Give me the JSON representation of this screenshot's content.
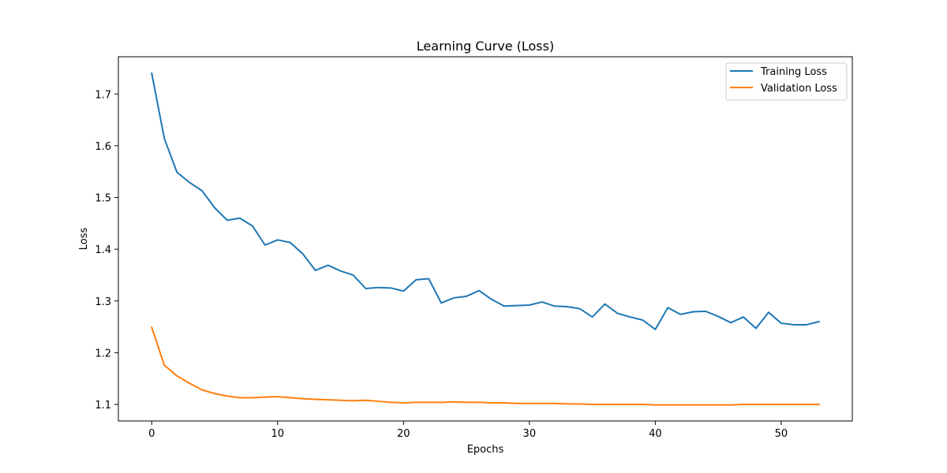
{
  "chart_data": {
    "type": "line",
    "title": "Learning Curve (Loss)",
    "xlabel": "Epochs",
    "ylabel": "Loss",
    "xlim": [
      -2.65,
      55.65
    ],
    "ylim": [
      1.068,
      1.772
    ],
    "xticks": [
      0,
      10,
      20,
      30,
      40,
      50
    ],
    "yticks": [
      1.1,
      1.2,
      1.3,
      1.4,
      1.5,
      1.6,
      1.7
    ],
    "yticks_labels": [
      "1.1",
      "1.2",
      "1.3",
      "1.4",
      "1.5",
      "1.6",
      "1.7"
    ],
    "grid": false,
    "legend_position": "top-right",
    "series": [
      {
        "name": "Training Loss",
        "color": "#1f77b4",
        "x": [
          0,
          1,
          2,
          3,
          4,
          5,
          6,
          7,
          8,
          9,
          10,
          11,
          12,
          13,
          14,
          15,
          16,
          17,
          18,
          19,
          20,
          21,
          22,
          23,
          24,
          25,
          26,
          27,
          28,
          29,
          30,
          31,
          32,
          33,
          34,
          35,
          36,
          37,
          38,
          39,
          40,
          41,
          42,
          43,
          44,
          45,
          46,
          47,
          48,
          49,
          50,
          51,
          52,
          53
        ],
        "values": [
          1.74,
          1.614,
          1.549,
          1.529,
          1.513,
          1.48,
          1.456,
          1.46,
          1.445,
          1.408,
          1.418,
          1.413,
          1.391,
          1.359,
          1.369,
          1.358,
          1.35,
          1.324,
          1.326,
          1.325,
          1.319,
          1.341,
          1.343,
          1.296,
          1.306,
          1.309,
          1.32,
          1.303,
          1.29,
          1.291,
          1.292,
          1.298,
          1.29,
          1.289,
          1.285,
          1.269,
          1.294,
          1.276,
          1.269,
          1.263,
          1.245,
          1.287,
          1.274,
          1.279,
          1.28,
          1.27,
          1.258,
          1.269,
          1.247,
          1.278,
          1.257,
          1.254,
          1.254,
          1.26
        ]
      },
      {
        "name": "Validation Loss",
        "color": "#ff7f0e",
        "x": [
          0,
          1,
          2,
          3,
          4,
          5,
          6,
          7,
          8,
          9,
          10,
          11,
          12,
          13,
          14,
          15,
          16,
          17,
          18,
          19,
          20,
          21,
          22,
          23,
          24,
          25,
          26,
          27,
          28,
          29,
          30,
          31,
          32,
          33,
          34,
          35,
          36,
          37,
          38,
          39,
          40,
          41,
          42,
          43,
          44,
          45,
          46,
          47,
          48,
          49,
          50,
          51,
          52,
          53
        ],
        "values": [
          1.249,
          1.176,
          1.155,
          1.141,
          1.128,
          1.121,
          1.116,
          1.113,
          1.113,
          1.114,
          1.115,
          1.113,
          1.111,
          1.11,
          1.109,
          1.108,
          1.107,
          1.108,
          1.106,
          1.104,
          1.103,
          1.104,
          1.104,
          1.104,
          1.105,
          1.104,
          1.104,
          1.103,
          1.103,
          1.102,
          1.102,
          1.102,
          1.102,
          1.101,
          1.101,
          1.1,
          1.1,
          1.1,
          1.1,
          1.1,
          1.099,
          1.099,
          1.099,
          1.099,
          1.099,
          1.099,
          1.099,
          1.1,
          1.1,
          1.1,
          1.1,
          1.1,
          1.1,
          1.1
        ]
      }
    ]
  }
}
